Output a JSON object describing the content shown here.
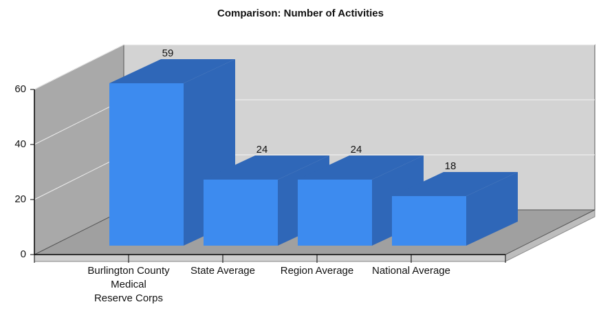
{
  "chart_data": {
    "type": "bar3d",
    "title": "Comparison: Number of Activities",
    "categories": [
      "Burlington County\nMedical\nReserve Corps",
      "State Average",
      "Region Average",
      "National Average"
    ],
    "values": [
      59,
      24,
      24,
      18
    ],
    "color": "#3d8bef",
    "side_color": "#2f67b8",
    "ylim": [
      0,
      60
    ],
    "yticks": [
      0,
      20,
      40,
      60
    ],
    "grid": true
  }
}
